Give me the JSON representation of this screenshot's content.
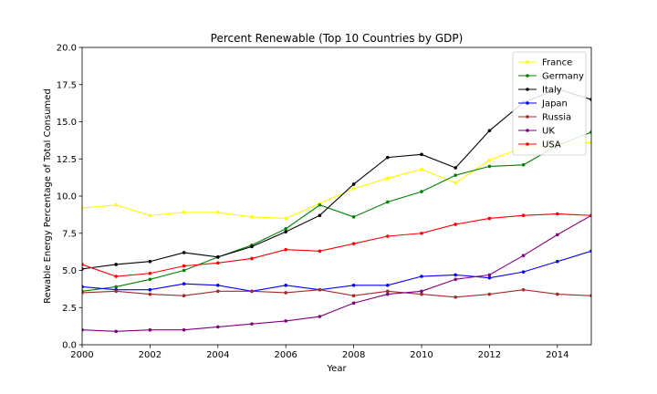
{
  "chart_data": {
    "type": "line",
    "title": "Percent Renewable (Top 10 Countries by GDP)",
    "xlabel": "Year",
    "ylabel": "Rewable Energy Percentage of Total Consumed",
    "xlim": [
      2000,
      2015
    ],
    "ylim": [
      0,
      20
    ],
    "x_ticks": [
      2000,
      2002,
      2004,
      2006,
      2008,
      2010,
      2012,
      2014
    ],
    "y_ticks": [
      "0.0",
      "2.5",
      "5.0",
      "7.5",
      "10.0",
      "12.5",
      "15.0",
      "17.5",
      "20.0"
    ],
    "grid": false,
    "legend_position": "top-right",
    "x": [
      2000,
      2001,
      2002,
      2003,
      2004,
      2005,
      2006,
      2007,
      2008,
      2009,
      2010,
      2011,
      2012,
      2013,
      2014,
      2015
    ],
    "series": [
      {
        "name": "France",
        "color": "#ffff00",
        "values": [
          9.2,
          9.4,
          8.7,
          8.9,
          8.9,
          8.6,
          8.5,
          9.5,
          10.5,
          11.2,
          11.8,
          10.9,
          12.4,
          13.3,
          13.4,
          13.6
        ]
      },
      {
        "name": "Germany",
        "color": "#008000",
        "values": [
          3.6,
          3.9,
          4.4,
          5.0,
          5.9,
          6.7,
          7.8,
          9.4,
          8.6,
          9.6,
          10.3,
          11.4,
          12.0,
          12.1,
          13.4,
          14.3
        ]
      },
      {
        "name": "Italy",
        "color": "#000000",
        "values": [
          5.1,
          5.4,
          5.6,
          6.2,
          5.9,
          6.6,
          7.6,
          8.7,
          10.8,
          12.6,
          12.8,
          11.9,
          14.4,
          16.3,
          17.2,
          16.5
        ]
      },
      {
        "name": "Japan",
        "color": "#0000ff",
        "values": [
          3.9,
          3.7,
          3.7,
          4.1,
          4.0,
          3.6,
          4.0,
          3.7,
          4.0,
          4.0,
          4.6,
          4.7,
          4.5,
          4.9,
          5.6,
          6.3
        ]
      },
      {
        "name": "Russia",
        "color": "#a52a2a",
        "values": [
          3.5,
          3.6,
          3.4,
          3.3,
          3.6,
          3.6,
          3.5,
          3.7,
          3.3,
          3.6,
          3.4,
          3.2,
          3.4,
          3.7,
          3.4,
          3.3
        ]
      },
      {
        "name": "UK",
        "color": "#800080",
        "values": [
          1.0,
          0.9,
          1.0,
          1.0,
          1.2,
          1.4,
          1.6,
          1.9,
          2.8,
          3.4,
          3.6,
          4.4,
          4.7,
          6.0,
          7.4,
          8.7
        ]
      },
      {
        "name": "USA",
        "color": "#ff0000",
        "values": [
          5.4,
          4.6,
          4.8,
          5.3,
          5.5,
          5.8,
          6.4,
          6.3,
          6.8,
          7.3,
          7.5,
          8.1,
          8.5,
          8.7,
          8.8,
          8.7
        ]
      }
    ]
  }
}
